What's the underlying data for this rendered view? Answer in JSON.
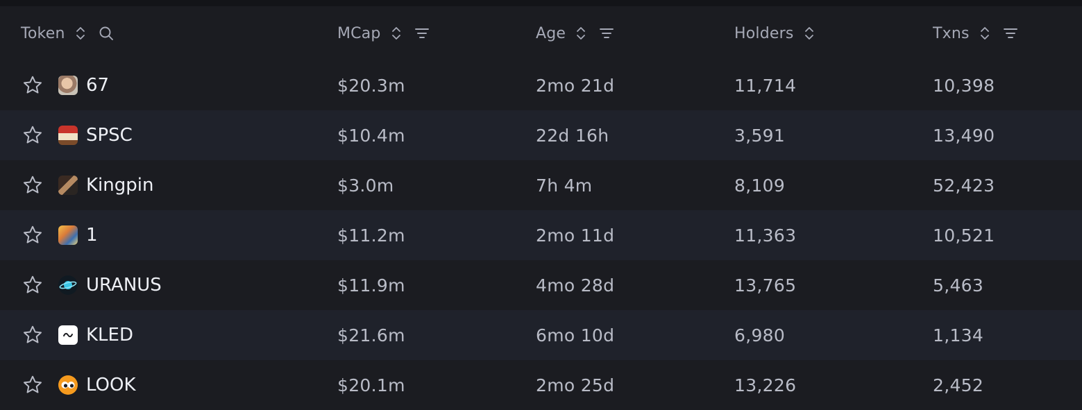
{
  "columns": {
    "token": "Token",
    "mcap": "MCap",
    "age": "Age",
    "holders": "Holders",
    "txns": "Txns"
  },
  "rows": [
    {
      "name": "67",
      "mcap": "$20.3m",
      "age": "2mo 21d",
      "holders": "11,714",
      "txns": "10,398",
      "avatar": "face-photo-icon"
    },
    {
      "name": "SPSC",
      "mcap": "$10.4m",
      "age": "22d 16h",
      "holders": "3,591",
      "txns": "13,490",
      "avatar": "can-icon"
    },
    {
      "name": "Kingpin",
      "mcap": "$3.0m",
      "age": "7h 4m",
      "holders": "8,109",
      "txns": "52,423",
      "avatar": "person-photo-icon"
    },
    {
      "name": "1",
      "mcap": "$11.2m",
      "age": "2mo 11d",
      "holders": "11,363",
      "txns": "10,521",
      "avatar": "colorful-art-icon"
    },
    {
      "name": "URANUS",
      "mcap": "$11.9m",
      "age": "4mo 28d",
      "holders": "13,765",
      "txns": "5,463",
      "avatar": "planet-icon"
    },
    {
      "name": "KLED",
      "mcap": "$21.6m",
      "age": "6mo 10d",
      "holders": "6,980",
      "txns": "1,134",
      "avatar": "kled-logo-icon"
    },
    {
      "name": "LOOK",
      "mcap": "$20.1m",
      "age": "2mo 25d",
      "holders": "13,226",
      "txns": "2,452",
      "avatar": "eyes-icon"
    }
  ],
  "colors": {
    "background": "#1b1c21",
    "row_alt": "#1f222b",
    "header_text": "#a6a9b6",
    "value_text": "#b9bcc7",
    "name_text": "#eef0f5"
  }
}
